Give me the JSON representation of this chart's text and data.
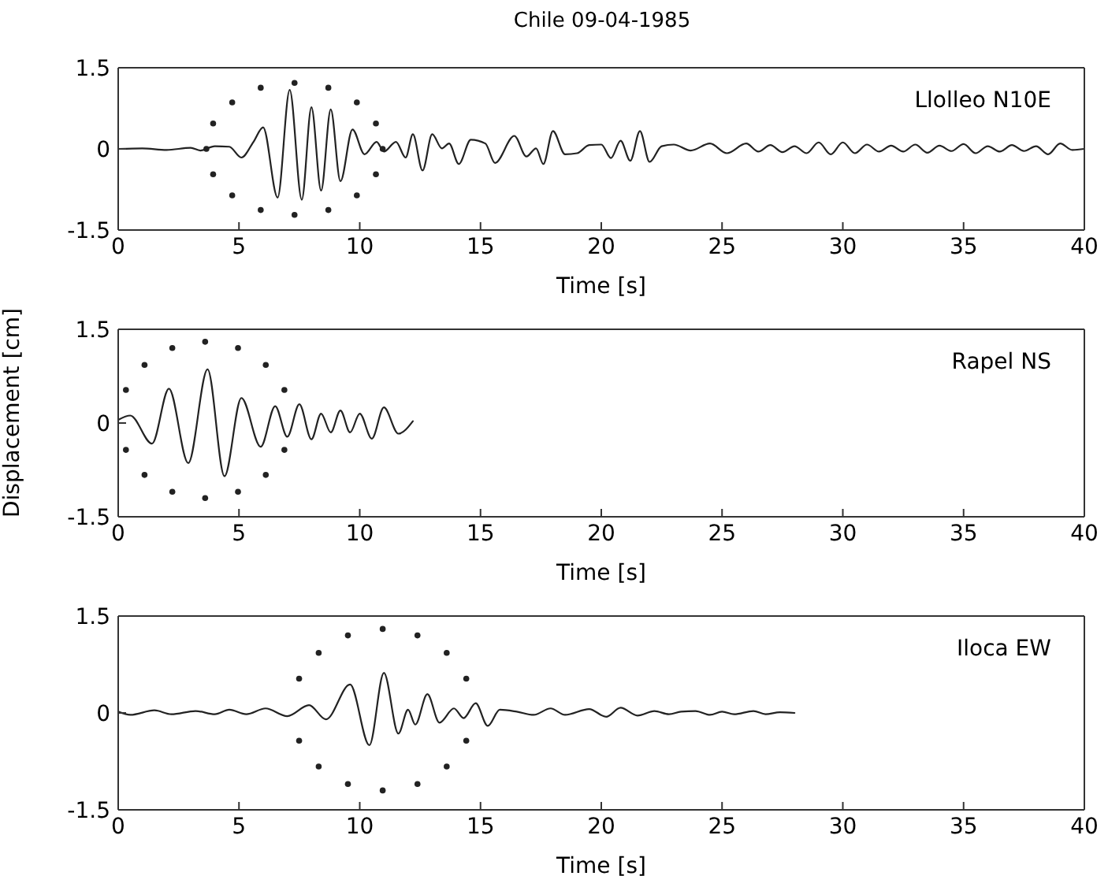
{
  "chart_data": [
    {
      "type": "line",
      "title": "Chile 09-04-1985",
      "xlabel": "Time [s]",
      "xlim": [
        0,
        40
      ],
      "xticks": [
        0,
        5,
        10,
        15,
        20,
        25,
        30,
        35,
        40
      ],
      "ylim": [
        -1.5,
        1.5
      ],
      "yticks": [
        -1.5,
        0,
        1.5
      ],
      "marker": "none",
      "series": [
        {
          "name": "Llolleo N10E",
          "color": "#222222",
          "line_style": "solid",
          "x": [
            0,
            1,
            2,
            3,
            3.4,
            4,
            4.6,
            5.1,
            5.6,
            6.0,
            6.6,
            7.1,
            7.6,
            8.0,
            8.4,
            8.8,
            9.2,
            9.7,
            10.2,
            10.7,
            11.0,
            11.5,
            11.9,
            12.2,
            12.6,
            13.0,
            13.4,
            13.7,
            14.1,
            14.6,
            15.2,
            15.6,
            16.4,
            16.9,
            17.3,
            17.6,
            18.0,
            18.5,
            19.0,
            19.5,
            20.0,
            20.4,
            20.8,
            21.2,
            21.6,
            22.0,
            22.5,
            23.0,
            23.7,
            24.5,
            25.2,
            26,
            26.5,
            27,
            27.5,
            28,
            28.5,
            29,
            29.5,
            30,
            30.5,
            31,
            31.5,
            32,
            32.5,
            33,
            33.5,
            34,
            34.5,
            35,
            35.5,
            36,
            36.5,
            37,
            37.5,
            38,
            38.5,
            39,
            39.5,
            40
          ],
          "values": [
            0,
            0.01,
            -0.02,
            0.02,
            -0.03,
            0.05,
            0.04,
            -0.16,
            0.13,
            0.4,
            -0.9,
            1.09,
            -0.94,
            0.77,
            -0.77,
            0.73,
            -0.6,
            0.36,
            -0.1,
            0.13,
            -0.05,
            0.13,
            -0.16,
            0.27,
            -0.4,
            0.27,
            0.01,
            0.1,
            -0.28,
            0.17,
            0.1,
            -0.26,
            0.24,
            -0.14,
            0.01,
            -0.28,
            0.33,
            -0.1,
            -0.08,
            0.07,
            0.08,
            -0.17,
            0.15,
            -0.22,
            0.33,
            -0.24,
            0.05,
            0.08,
            -0.03,
            0.1,
            -0.08,
            0.1,
            -0.05,
            0.07,
            -0.06,
            0.05,
            -0.08,
            0.12,
            -0.1,
            0.12,
            -0.08,
            0.08,
            -0.05,
            0.06,
            -0.05,
            0.08,
            -0.07,
            0.06,
            -0.04,
            0.09,
            -0.08,
            0.05,
            -0.05,
            0.07,
            -0.04,
            0.05,
            -0.1,
            0.1,
            -0.02,
            0
          ]
        },
        {
          "type": "scatter",
          "marker": "circle",
          "color": "#222222",
          "x": [
            10.95,
            10.67,
            9.88,
            8.7,
            7.3,
            5.9,
            4.72,
            3.93,
            3.65,
            3.93,
            4.72,
            5.9,
            7.3,
            8.7,
            9.88,
            10.67
          ],
          "values": [
            0,
            0.47,
            0.86,
            1.13,
            1.22,
            1.13,
            0.86,
            0.47,
            0,
            -0.47,
            -0.86,
            -1.13,
            -1.22,
            -1.13,
            -0.86,
            -0.47
          ]
        }
      ]
    },
    {
      "type": "line",
      "xlabel": "Time [s]",
      "ylabel": "Displacement [cm]",
      "xlim": [
        0,
        40
      ],
      "xticks": [
        0,
        5,
        10,
        15,
        20,
        25,
        30,
        35,
        40
      ],
      "ylim": [
        -1.5,
        1.5
      ],
      "yticks": [
        -1.5,
        0,
        1.5
      ],
      "marker": "none",
      "series": [
        {
          "name": "Rapel NS",
          "color": "#222222",
          "line_style": "solid",
          "x": [
            0,
            0.5,
            1.4,
            2.1,
            2.9,
            3.7,
            4.4,
            5.1,
            5.9,
            6.5,
            7.0,
            7.5,
            8.0,
            8.4,
            8.8,
            9.2,
            9.6,
            10.0,
            10.5,
            11.0,
            11.6,
            12.2
          ],
          "values": [
            0.05,
            0.12,
            -0.33,
            0.55,
            -0.64,
            0.86,
            -0.85,
            0.4,
            -0.38,
            0.27,
            -0.22,
            0.3,
            -0.26,
            0.15,
            -0.15,
            0.2,
            -0.15,
            0.15,
            -0.25,
            0.25,
            -0.17,
            0.03
          ]
        },
        {
          "type": "scatter",
          "marker": "circle",
          "color": "#222222",
          "x": [
            6.88,
            6.11,
            4.96,
            3.6,
            2.24,
            1.09,
            0.32,
            0.32,
            1.09,
            2.24,
            3.6,
            4.96,
            6.11,
            6.88
          ],
          "values": [
            0.53,
            0.93,
            1.2,
            1.3,
            1.2,
            0.93,
            0.53,
            -0.43,
            -0.83,
            -1.1,
            -1.2,
            -1.1,
            -0.83,
            -0.43
          ]
        }
      ]
    },
    {
      "type": "line",
      "xlabel": "Time [s]",
      "xlim": [
        0,
        40
      ],
      "xticks": [
        0,
        5,
        10,
        15,
        20,
        25,
        30,
        35,
        40
      ],
      "ylim": [
        -1.5,
        1.5
      ],
      "yticks": [
        -1.5,
        0,
        1.5
      ],
      "marker": "none",
      "series": [
        {
          "name": "Iloca EW",
          "color": "#222222",
          "line_style": "solid",
          "x": [
            0,
            0.5,
            1.5,
            2.2,
            3.2,
            4,
            4.6,
            5.3,
            6.1,
            7,
            7.9,
            8.6,
            9.6,
            10.4,
            11.0,
            11.6,
            12.0,
            12.3,
            12.8,
            13.3,
            13.9,
            14.3,
            14.8,
            15.3,
            15.8,
            16.5,
            17.2,
            17.9,
            18.5,
            19.5,
            20.2,
            20.8,
            21.5,
            22.2,
            22.8,
            23.3,
            23.9,
            24.5,
            25,
            25.5,
            26.3,
            26.8,
            27.4,
            28
          ],
          "values": [
            0.02,
            -0.03,
            0.04,
            -0.02,
            0.03,
            -0.02,
            0.05,
            -0.02,
            0.07,
            -0.05,
            0.12,
            -0.1,
            0.44,
            -0.5,
            0.62,
            -0.32,
            0.05,
            -0.18,
            0.29,
            -0.15,
            0.07,
            -0.08,
            0.15,
            -0.2,
            0.05,
            0.02,
            -0.03,
            0.07,
            -0.03,
            0.06,
            -0.06,
            0.08,
            -0.04,
            0.03,
            -0.02,
            0.02,
            0.03,
            -0.03,
            0.02,
            -0.02,
            0.03,
            -0.02,
            0.01,
            0
          ]
        },
        {
          "type": "scatter",
          "marker": "circle",
          "color": "#222222",
          "x": [
            14.41,
            13.6,
            12.39,
            10.95,
            9.51,
            8.3,
            7.49,
            7.49,
            8.3,
            9.51,
            10.95,
            12.39,
            13.6,
            14.41
          ],
          "values": [
            0.53,
            0.93,
            1.2,
            1.3,
            1.2,
            0.93,
            0.53,
            -0.43,
            -0.83,
            -1.1,
            -1.2,
            -1.1,
            -0.83,
            -0.43
          ]
        }
      ]
    }
  ]
}
